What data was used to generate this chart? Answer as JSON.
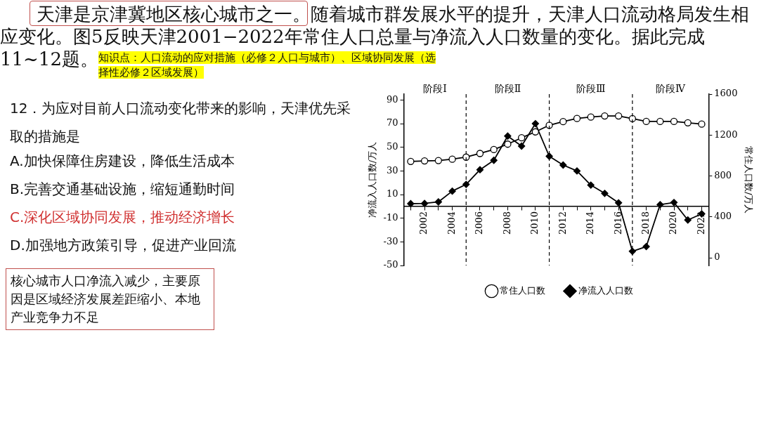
{
  "chart_data": {
    "type": "line",
    "x": [
      2001,
      2002,
      2003,
      2004,
      2005,
      2006,
      2007,
      2008,
      2009,
      2010,
      2011,
      2012,
      2013,
      2014,
      2015,
      2016,
      2017,
      2018,
      2019,
      2020,
      2021,
      2022
    ],
    "series": [
      {
        "name": "常住人口数",
        "color": "#000000",
        "axis": "y2",
        "marker": "circle",
        "values": [
          942,
          947,
          951,
          964,
          984,
          1020,
          1058,
          1111,
          1173,
          1231,
          1296,
          1331,
          1362,
          1376,
          1387,
          1387,
          1360,
          1333,
          1333,
          1333,
          1320,
          1307
        ]
      },
      {
        "name": "净流入人口数",
        "color": "#000000",
        "marker": "diamond",
        "values": [
          2.3,
          2.5,
          3.8,
          12.9,
          18.6,
          31,
          39,
          59.5,
          51,
          70,
          42.4,
          35,
          30,
          18,
          11,
          3,
          -38,
          -34,
          1.5,
          3.3,
          -11.5,
          -6.3
        ]
      }
    ],
    "xlim": [
      2000.5,
      2022.5
    ],
    "xticks": [
      {
        "value": 2001,
        "label": null
      },
      2002,
      {
        "value": 2003,
        "label": null
      },
      2004,
      {
        "value": 2005,
        "label": null
      },
      2006,
      {
        "value": 2007,
        "label": null
      },
      2008,
      {
        "value": 2009,
        "label": null
      },
      2010,
      {
        "value": 2011,
        "label": null
      },
      2012,
      {
        "value": 2013,
        "label": null
      },
      2014,
      {
        "value": 2015,
        "label": null
      },
      2016,
      {
        "value": 2017,
        "label": null
      },
      2018,
      {
        "value": 2019,
        "label": null
      },
      2020,
      {
        "value": 2021,
        "label": null
      },
      2022
    ],
    "ylim": [
      -50,
      95
    ],
    "yticks": [
      -50,
      -30,
      -10,
      10,
      30,
      50,
      70,
      90
    ],
    "y2lim": [
      -75,
      1600
    ],
    "y2ticks": [
      0,
      400,
      800,
      1200,
      1600
    ],
    "ylabel": "净流入人口数/万人",
    "y2label": "常住人口数/万人",
    "ref_lines": [
      {
        "axis": "x",
        "value": 2005,
        "line_style": "dashed"
      },
      {
        "axis": "x",
        "value": 2011,
        "line_style": "dashed"
      },
      {
        "axis": "x",
        "value": 2017,
        "line_style": "dashed"
      }
    ],
    "grid": false,
    "legend": "bottom",
    "line_style": "solid",
    "annotations": [
      "阶段Ⅰ",
      "阶段Ⅱ",
      "阶段Ⅲ",
      "阶段Ⅳ",
      "天津是京津冀地区核心城市之一。随着城市群发展水平的提升，天津人口流动格局发生相应变化。图5反映天津2001−2022年常住人口总量与净流入人口数量的变化。据此完成11~12题。",
      "知识点：人口流动的应对措施（必修２人口与城市）、区域协同发展（选择性必修２区域发展）",
      "12．为应对目前人口流动变化带来的影响，天津优先采取的措施是",
      "A.加快保障住房建设，降低生活成本",
      "B.完善交通基础设施，缩短通勤时间",
      "C.深化区域协同发展，推动经济增长",
      "D.加强地方政策引导，促进产业回流",
      "核心城市人口净流入减少，主要原因是区域经济发展差距缩小、本地产业竞争力不足"
    ]
  }
}
